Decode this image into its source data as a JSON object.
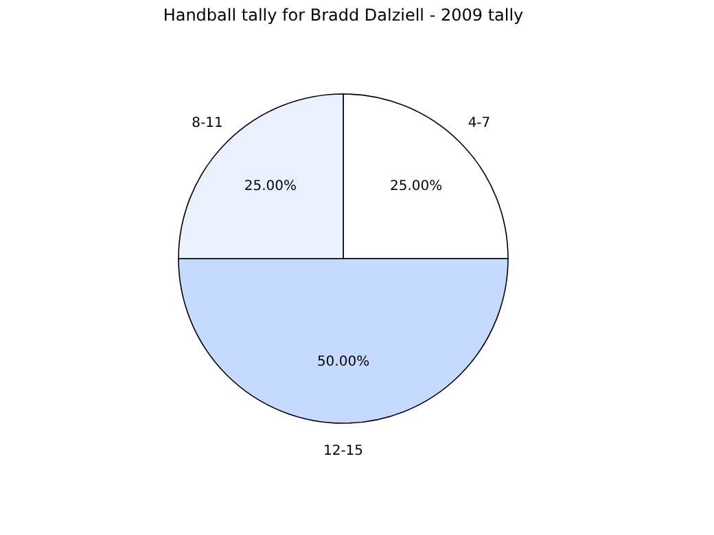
{
  "chart_data": {
    "type": "pie",
    "title": "Handball tally for Bradd Dalziell - 2009 tally",
    "categories": [
      "4-7",
      "12-15",
      "8-11"
    ],
    "values": [
      25,
      50,
      25
    ],
    "colors": [
      "#ffffff",
      "#c6d9fe",
      "#ebf0fe"
    ],
    "value_labels": [
      "25.00%",
      "50.00%",
      "25.00%"
    ],
    "legend": false
  }
}
